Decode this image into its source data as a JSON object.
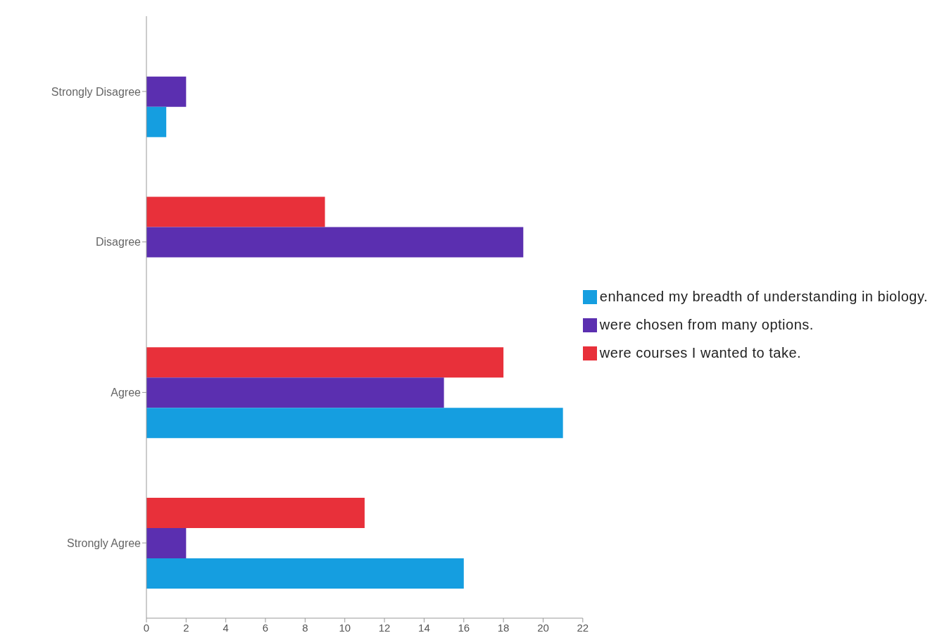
{
  "chart_data": {
    "type": "bar",
    "orientation": "horizontal",
    "categories": [
      "Strongly Disagree",
      "Disagree",
      "Agree",
      "Strongly Agree"
    ],
    "series": [
      {
        "name": "were courses I wanted to take.",
        "color": "#e8303a",
        "values": [
          0,
          9,
          18,
          11
        ]
      },
      {
        "name": "were chosen from many options.",
        "color": "#5b2fb0",
        "values": [
          2,
          19,
          15,
          2
        ]
      },
      {
        "name": "enhanced my breadth of understanding in biology.",
        "color": "#159ee0",
        "values": [
          1,
          0,
          21,
          16
        ]
      }
    ],
    "xlim": [
      0,
      22
    ],
    "xticks": [
      0,
      2,
      4,
      6,
      8,
      10,
      12,
      14,
      16,
      18,
      20,
      22
    ],
    "grid": false,
    "legend": "right"
  }
}
